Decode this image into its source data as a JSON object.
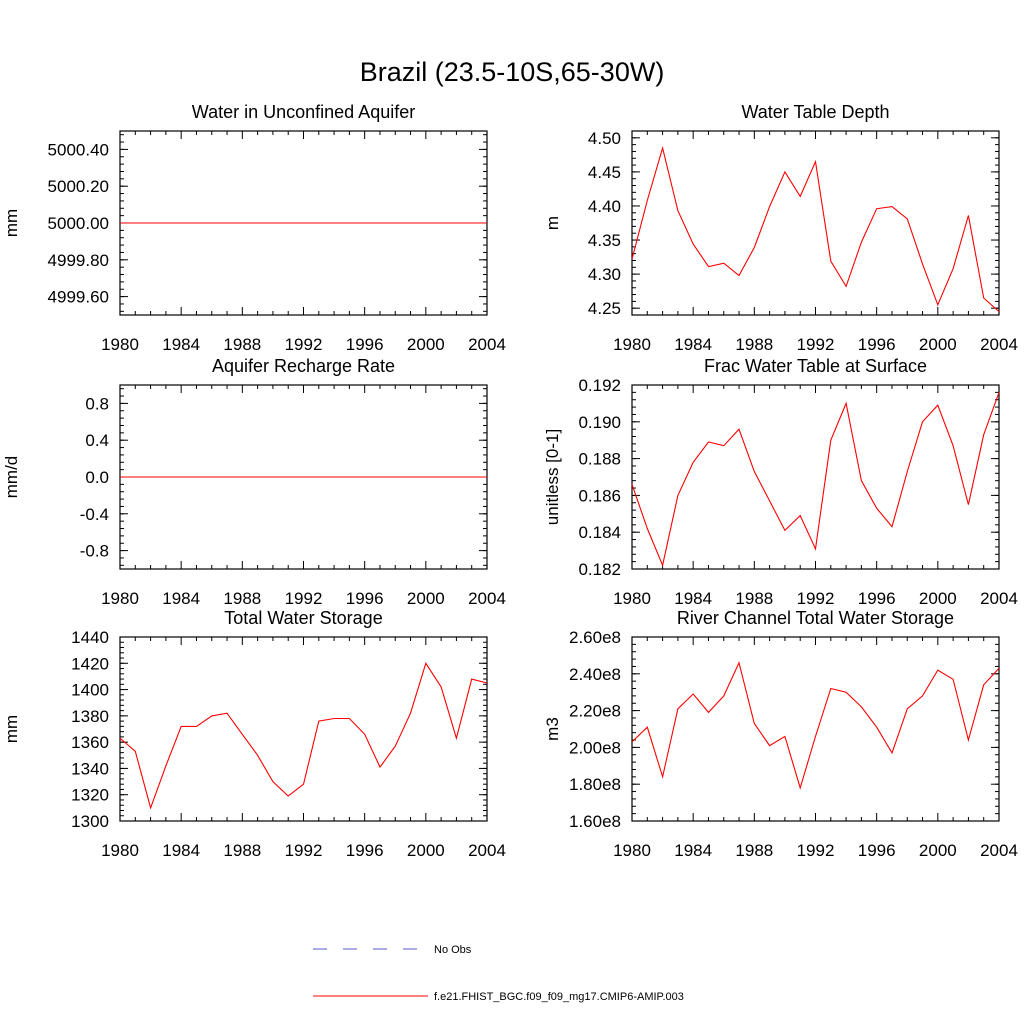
{
  "page_title": "Brazil (23.5-10S,65-30W)",
  "legend": {
    "obs_label": "No Obs",
    "model_label": "f.e21.FHIST_BGC.f09_f09_mg17.CMIP6-AMIP.003",
    "obs_color": "#5a5acd",
    "model_color": "#ff0000"
  },
  "chart_data": [
    {
      "type": "line",
      "title": "Water in Unconfined Aquifer",
      "xlabel": "",
      "ylabel": "mm",
      "xlim": [
        1980,
        2004
      ],
      "ylim": [
        4999.5,
        5000.5
      ],
      "x_ticks": [
        1980,
        1984,
        1988,
        1992,
        1996,
        2000,
        2004
      ],
      "y_ticks": [
        4999.6,
        4999.8,
        5000.0,
        5000.2,
        5000.4
      ],
      "y_tick_labels": [
        "4999.60",
        "4999.80",
        "5000.00",
        "5000.20",
        "5000.40"
      ],
      "x": [
        1980,
        2004
      ],
      "values": [
        5000.0,
        5000.0
      ]
    },
    {
      "type": "line",
      "title": "Water Table Depth",
      "xlabel": "",
      "ylabel": "m",
      "xlim": [
        1980,
        2004
      ],
      "ylim": [
        4.24,
        4.51
      ],
      "x_ticks": [
        1980,
        1984,
        1988,
        1992,
        1996,
        2000,
        2004
      ],
      "y_ticks": [
        4.25,
        4.3,
        4.35,
        4.4,
        4.45,
        4.5
      ],
      "y_tick_labels": [
        "4.25",
        "4.30",
        "4.35",
        "4.40",
        "4.45",
        "4.50"
      ],
      "x": [
        1980,
        1981,
        1982,
        1983,
        1984,
        1985,
        1986,
        1987,
        1988,
        1989,
        1990,
        1991,
        1992,
        1993,
        1994,
        1995,
        1996,
        1997,
        1998,
        1999,
        2000,
        2001,
        2002,
        2003,
        2004
      ],
      "values": [
        4.322,
        4.408,
        4.485,
        4.393,
        4.344,
        4.311,
        4.316,
        4.298,
        4.339,
        4.399,
        4.45,
        4.414,
        4.465,
        4.319,
        4.282,
        4.347,
        4.396,
        4.399,
        4.381,
        4.315,
        4.255,
        4.308,
        4.386,
        4.265,
        4.245
      ]
    },
    {
      "type": "line",
      "title": "Aquifer Recharge Rate",
      "xlabel": "",
      "ylabel": "mm/d",
      "xlim": [
        1980,
        2004
      ],
      "ylim": [
        -1.0,
        1.0
      ],
      "x_ticks": [
        1980,
        1984,
        1988,
        1992,
        1996,
        2000,
        2004
      ],
      "y_ticks": [
        -0.8,
        -0.4,
        0.0,
        0.4,
        0.8
      ],
      "y_tick_labels": [
        "-0.8",
        "-0.4",
        "0.0",
        "0.4",
        "0.8"
      ],
      "x": [
        1980,
        2004
      ],
      "values": [
        0.0,
        0.0
      ]
    },
    {
      "type": "line",
      "title": "Frac Water Table at Surface",
      "xlabel": "",
      "ylabel": "unitless [0-1]",
      "xlim": [
        1980,
        2004
      ],
      "ylim": [
        0.182,
        0.192
      ],
      "x_ticks": [
        1980,
        1984,
        1988,
        1992,
        1996,
        2000,
        2004
      ],
      "y_ticks": [
        0.182,
        0.184,
        0.186,
        0.188,
        0.19,
        0.192
      ],
      "y_tick_labels": [
        "0.182",
        "0.184",
        "0.186",
        "0.188",
        "0.190",
        "0.192"
      ],
      "x": [
        1980,
        1981,
        1982,
        1983,
        1984,
        1985,
        1986,
        1987,
        1988,
        1989,
        1990,
        1991,
        1992,
        1993,
        1994,
        1995,
        1996,
        1997,
        1998,
        1999,
        2000,
        2001,
        2002,
        2003,
        2004
      ],
      "values": [
        0.1866,
        0.1842,
        0.1822,
        0.186,
        0.1878,
        0.1889,
        0.1887,
        0.1896,
        0.1873,
        0.1857,
        0.1841,
        0.1849,
        0.1831,
        0.189,
        0.191,
        0.1868,
        0.1853,
        0.1843,
        0.1873,
        0.19,
        0.1909,
        0.1887,
        0.1855,
        0.1893,
        0.1916
      ]
    },
    {
      "type": "line",
      "title": "Total Water Storage",
      "xlabel": "",
      "ylabel": "mm",
      "xlim": [
        1980,
        2004
      ],
      "ylim": [
        1300,
        1440
      ],
      "x_ticks": [
        1980,
        1984,
        1988,
        1992,
        1996,
        2000,
        2004
      ],
      "y_ticks": [
        1300,
        1320,
        1340,
        1360,
        1380,
        1400,
        1420,
        1440
      ],
      "y_tick_labels": [
        "1300",
        "1320",
        "1340",
        "1360",
        "1380",
        "1400",
        "1420",
        "1440"
      ],
      "x": [
        1980,
        1981,
        1982,
        1983,
        1984,
        1985,
        1986,
        1987,
        1988,
        1989,
        1990,
        1991,
        1992,
        1993,
        1994,
        1995,
        1996,
        1997,
        1998,
        1999,
        2000,
        2001,
        2002,
        2003,
        2004
      ],
      "values": [
        1363,
        1353,
        1310,
        1342,
        1372,
        1372,
        1380,
        1382,
        1366,
        1350,
        1330,
        1319,
        1328,
        1376,
        1378,
        1378,
        1366,
        1341,
        1357,
        1382,
        1420,
        1402,
        1363,
        1408,
        1405
      ]
    },
    {
      "type": "line",
      "title": "River Channel Total Water Storage",
      "xlabel": "",
      "ylabel": "m3",
      "xlim": [
        1980,
        2004
      ],
      "ylim": [
        160000000.0,
        260000000.0
      ],
      "x_ticks": [
        1980,
        1984,
        1988,
        1992,
        1996,
        2000,
        2004
      ],
      "y_ticks": [
        160000000.0,
        180000000.0,
        200000000.0,
        220000000.0,
        240000000.0,
        260000000.0
      ],
      "y_tick_labels": [
        "1.60e8",
        "1.80e8",
        "2.00e8",
        "2.20e8",
        "2.40e8",
        "2.60e8"
      ],
      "x": [
        1980,
        1981,
        1982,
        1983,
        1984,
        1985,
        1986,
        1987,
        1988,
        1989,
        1990,
        1991,
        1992,
        1993,
        1994,
        1995,
        1996,
        1997,
        1998,
        1999,
        2000,
        2001,
        2002,
        2003,
        2004
      ],
      "values": [
        203000000.0,
        211000000.0,
        184000000.0,
        221000000.0,
        229000000.0,
        219000000.0,
        228000000.0,
        246000000.0,
        213000000.0,
        201000000.0,
        206000000.0,
        178000000.0,
        206000000.0,
        232000000.0,
        230000000.0,
        222000000.0,
        211000000.0,
        197000000.0,
        221000000.0,
        228000000.0,
        242000000.0,
        237000000.0,
        204000000.0,
        234000000.0,
        243000000.0
      ]
    }
  ]
}
